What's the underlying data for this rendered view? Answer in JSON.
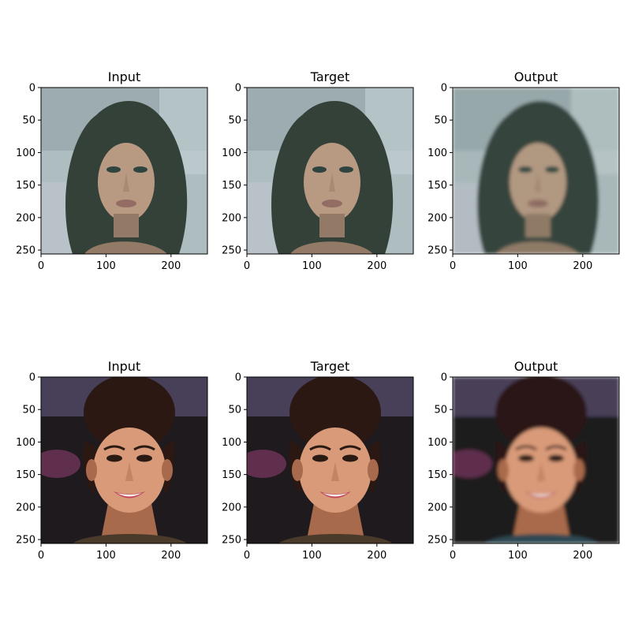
{
  "figure": {
    "rows": [
      {
        "palette": {
          "bg": "#b9c6cc",
          "bg2": "#8fa0a8",
          "hair": "#2e3a33",
          "skin": "#c49f87",
          "skin_dark": "#9a7a66",
          "lips": "#9a6a62",
          "eyes": "#2a3d3a",
          "tint": "#5f7a6b"
        },
        "panels": [
          {
            "title": "Input",
            "image": "woman with long dark hair, greenish tint"
          },
          {
            "title": "Target",
            "image": "woman with long dark hair, greenish tint"
          },
          {
            "title": "Output",
            "image": "blurred reconstruction of woman with long dark hair"
          }
        ]
      },
      {
        "palette": {
          "bg": "#1e1a1e",
          "bg2": "#5a5070",
          "hair": "#2b1812",
          "skin": "#d89a78",
          "skin_dark": "#a86a4c",
          "lips": "#c0485a",
          "eyes": "#2a1a14",
          "tint": "#7a4a3a"
        },
        "panels": [
          {
            "title": "Input",
            "image": "smiling woman with hair in updo"
          },
          {
            "title": "Target",
            "image": "smiling woman with hair in updo"
          },
          {
            "title": "Output",
            "image": "blurred reconstruction of smiling woman with hair in updo"
          }
        ]
      }
    ],
    "x_range": [
      0,
      256
    ],
    "y_range": [
      0,
      256
    ],
    "x_ticks": [
      0,
      100,
      200
    ],
    "y_ticks": [
      0,
      50,
      100,
      150,
      200,
      250
    ]
  }
}
